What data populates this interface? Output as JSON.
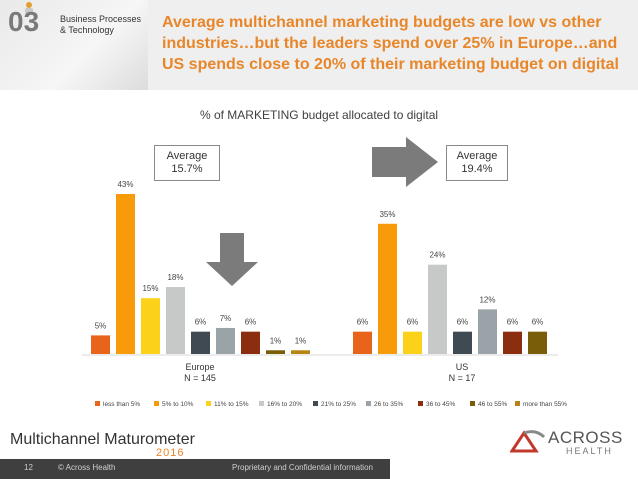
{
  "header": {
    "section_number": "03",
    "section_label_line1": "Business Processes",
    "section_label_line2": "& Technology",
    "title_line1": "Average multichannel marketing budgets are low vs other",
    "title_line2": "industries…but the leaders spend over 25% in Europe…and",
    "title_line3": "US spends close to 20% of their marketing budget on digital"
  },
  "averages": {
    "europe_label": "Average",
    "europe_value": "15.7%",
    "us_label": "Average",
    "us_value": "19.4%"
  },
  "chart_data": {
    "type": "bar",
    "title": "% of MARKETING budget allocated to digital",
    "categories": [
      "less than 5%",
      "5% to 10%",
      "11% to 15%",
      "16% to 20%",
      "21% to 25%",
      "26 to 35%",
      "36 to 45%",
      "46 to 55%",
      "more than 55%"
    ],
    "colors": [
      "#e8641b",
      "#f79b0b",
      "#fbd11a",
      "#c7c9c9",
      "#3f4a52",
      "#9aa3a8",
      "#8b2d0f",
      "#7a5d08",
      "#b58612"
    ],
    "groups": [
      {
        "name": "Europe",
        "n_label": "N = 145",
        "values": [
          5,
          43,
          15,
          18,
          6,
          7,
          6,
          1,
          1
        ],
        "labels": [
          "5%",
          "43%",
          "15%",
          "18%",
          "6%",
          "7%",
          "6%",
          "1%",
          "1%"
        ]
      },
      {
        "name": "US",
        "n_label": "N = 17",
        "values": [
          6,
          35,
          6,
          24,
          6,
          12,
          6,
          6
        ],
        "labels": [
          "6%",
          "35%",
          "6%",
          "24%",
          "6%",
          "12%",
          "6%",
          "6%"
        ]
      }
    ],
    "ylim": [
      0,
      45
    ],
    "legend_position": "bottom"
  },
  "footer": {
    "brand": "Multichannel Maturometer",
    "year": "2016",
    "logo_text": "ACROSS",
    "logo_sub": "HEALTH",
    "page_number": "12",
    "copyright": "© Across Health",
    "confidential": "Proprietary and Confidential information"
  }
}
